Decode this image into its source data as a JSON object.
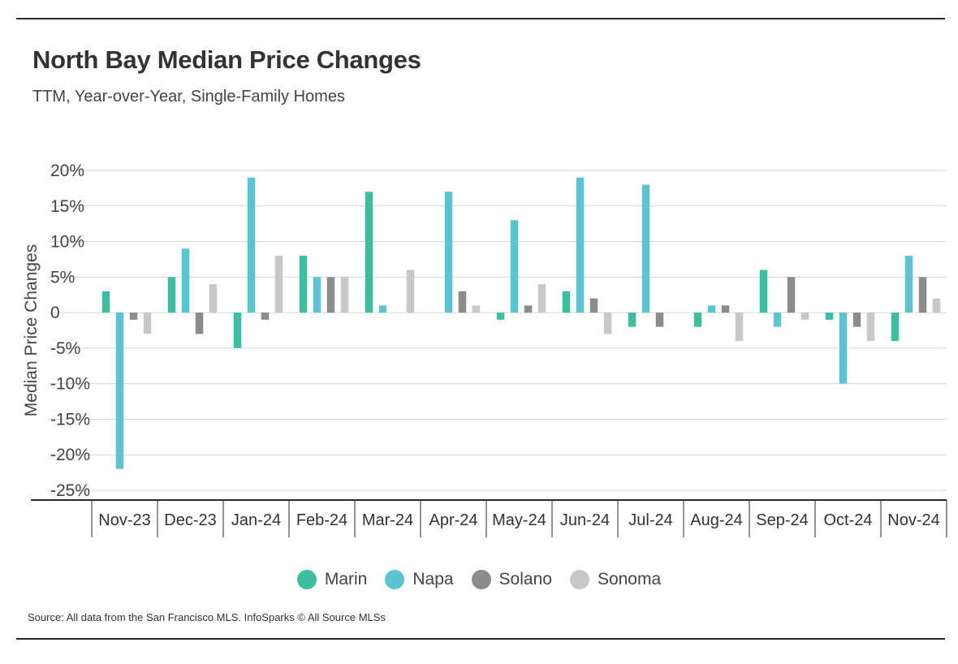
{
  "header": {
    "title": "North Bay Median Price Changes",
    "subtitle": "TTM, Year-over-Year, Single-Family Homes"
  },
  "footer": {
    "source": "Source:  All data from the San Francisco MLS. InfoSparks © All Source MLSs"
  },
  "chart_data": {
    "type": "bar",
    "title": "North Bay Median Price Changes",
    "subtitle": "TTM, Year-over-Year, Single-Family Homes",
    "ylabel": "Median Price Changes",
    "xlabel": "",
    "ylim": [
      -25,
      20
    ],
    "yticks": [
      20,
      15,
      10,
      5,
      0,
      -5,
      -10,
      -15,
      -20,
      -25
    ],
    "ytick_labels": [
      "20%",
      "15%",
      "10%",
      "5%",
      "0",
      "-5%",
      "-10%",
      "-15%",
      "-20%",
      "-25%"
    ],
    "grid": true,
    "legend_position": "bottom-center",
    "categories": [
      "Nov-23",
      "Dec-23",
      "Jan-24",
      "Feb-24",
      "Mar-24",
      "Apr-24",
      "May-24",
      "Jun-24",
      "Jul-24",
      "Aug-24",
      "Sep-24",
      "Oct-24",
      "Nov-24"
    ],
    "series": [
      {
        "name": "Marin",
        "color": "#3dbf9f",
        "values": [
          3,
          5,
          -5,
          8,
          17,
          0,
          -1,
          3,
          -2,
          -2,
          6,
          -1,
          -4
        ]
      },
      {
        "name": "Napa",
        "color": "#5cc4d0",
        "values": [
          -22,
          9,
          19,
          5,
          1,
          17,
          13,
          19,
          18,
          1,
          -2,
          -10,
          8
        ]
      },
      {
        "name": "Solano",
        "color": "#8c8c8c",
        "values": [
          -1,
          -3,
          -1,
          5,
          0,
          3,
          1,
          2,
          -2,
          1,
          5,
          -2,
          5
        ]
      },
      {
        "name": "Sonoma",
        "color": "#c8c8c8",
        "values": [
          -3,
          4,
          8,
          5,
          6,
          1,
          4,
          -3,
          0,
          -4,
          -1,
          -4,
          2
        ]
      }
    ]
  }
}
